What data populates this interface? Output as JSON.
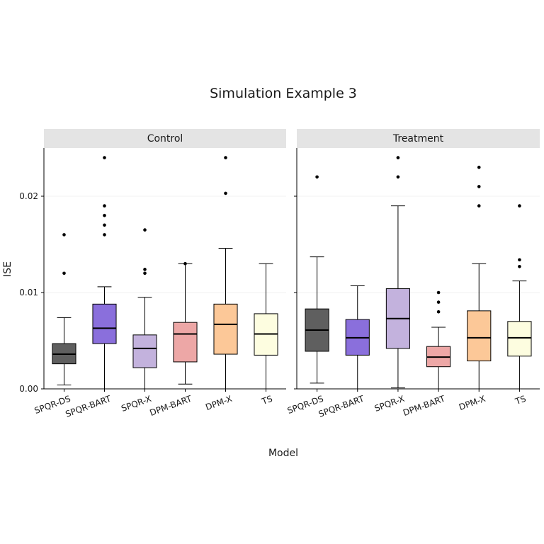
{
  "chart_data": {
    "type": "boxplot",
    "title": "Simulation Example 3",
    "xlabel": "Model",
    "ylabel": "ISE",
    "ylim": [
      0,
      0.025
    ],
    "yticks": [
      0,
      0.01,
      0.02
    ],
    "ytick_labels": [
      "0.00",
      "0.01",
      "0.02"
    ],
    "grid": true,
    "categories": [
      "SPQR-DS",
      "SPQR-BART",
      "SPQR-X",
      "DPM-BART",
      "DPM-X",
      "TS"
    ],
    "colors": {
      "SPQR-DS": "#5f5f5f",
      "SPQR-BART": "#8a6fdc",
      "SPQR-X": "#c3b2dd",
      "DPM-BART": "#eda7a6",
      "DPM-X": "#fcc898",
      "TS": "#fdfde0"
    },
    "panels": [
      {
        "label": "Control",
        "boxes": [
          {
            "model": "SPQR-DS",
            "whisker_low": 0.0004,
            "q1": 0.0026,
            "median": 0.0036,
            "q3": 0.0047,
            "whisker_high": 0.0074,
            "outliers": [
              0.012,
              0.016
            ]
          },
          {
            "model": "SPQR-BART",
            "whisker_low": 0.0,
            "q1": 0.0047,
            "median": 0.0063,
            "q3": 0.0088,
            "whisker_high": 0.0106,
            "outliers": [
              0.016,
              0.017,
              0.018,
              0.019,
              0.024
            ]
          },
          {
            "model": "SPQR-X",
            "whisker_low": 0.0,
            "q1": 0.0022,
            "median": 0.0042,
            "q3": 0.0056,
            "whisker_high": 0.0095,
            "outliers": [
              0.012,
              0.0124,
              0.0165
            ]
          },
          {
            "model": "DPM-BART",
            "whisker_low": 0.0005,
            "q1": 0.0028,
            "median": 0.0057,
            "q3": 0.0069,
            "whisker_high": 0.013,
            "outliers": [
              0.013
            ]
          },
          {
            "model": "DPM-X",
            "whisker_low": 0.0,
            "q1": 0.0036,
            "median": 0.0067,
            "q3": 0.0088,
            "whisker_high": 0.0146,
            "outliers": [
              0.0203,
              0.024
            ]
          },
          {
            "model": "TS",
            "whisker_low": 0.0,
            "q1": 0.0035,
            "median": 0.0057,
            "q3": 0.0078,
            "whisker_high": 0.013,
            "outliers": []
          }
        ]
      },
      {
        "label": "Treatment",
        "boxes": [
          {
            "model": "SPQR-DS",
            "whisker_low": 0.0006,
            "q1": 0.0039,
            "median": 0.0061,
            "q3": 0.0083,
            "whisker_high": 0.0137,
            "outliers": [
              0.022
            ]
          },
          {
            "model": "SPQR-BART",
            "whisker_low": 0.0,
            "q1": 0.0035,
            "median": 0.0053,
            "q3": 0.0072,
            "whisker_high": 0.0107,
            "outliers": []
          },
          {
            "model": "SPQR-X",
            "whisker_low": 0.0001,
            "q1": 0.0042,
            "median": 0.0073,
            "q3": 0.0104,
            "whisker_high": 0.019,
            "outliers": [
              0.022,
              0.024
            ]
          },
          {
            "model": "DPM-BART",
            "whisker_low": 0.0,
            "q1": 0.0023,
            "median": 0.0033,
            "q3": 0.0044,
            "whisker_high": 0.0064,
            "outliers": [
              0.008,
              0.009,
              0.01
            ]
          },
          {
            "model": "DPM-X",
            "whisker_low": 0.0,
            "q1": 0.0029,
            "median": 0.0053,
            "q3": 0.0081,
            "whisker_high": 0.013,
            "outliers": [
              0.019,
              0.021,
              0.023
            ]
          },
          {
            "model": "TS",
            "whisker_low": 0.0,
            "q1": 0.0034,
            "median": 0.0053,
            "q3": 0.007,
            "whisker_high": 0.0112,
            "outliers": [
              0.0127,
              0.0134,
              0.019
            ]
          }
        ]
      }
    ]
  }
}
